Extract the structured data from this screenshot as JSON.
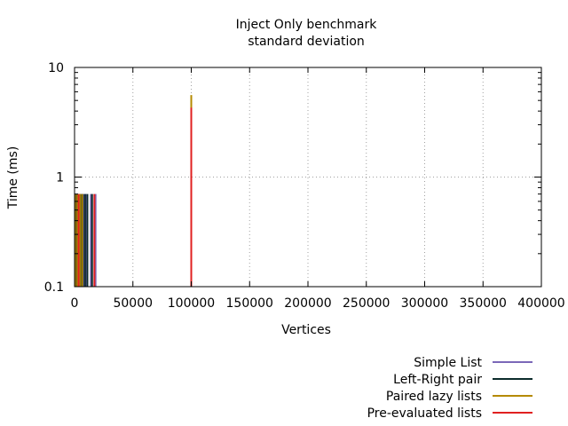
{
  "chart_data": {
    "type": "bar",
    "title": "Inject Only benchmark",
    "subtitle": "standard deviation",
    "xlabel": "Vertices",
    "ylabel": "Time (ms)",
    "x_scale": "linear",
    "y_scale": "log",
    "xlim": [
      0,
      400000
    ],
    "ylim": [
      0.1,
      10
    ],
    "x_ticks": [
      0,
      50000,
      100000,
      150000,
      200000,
      250000,
      300000,
      350000,
      400000
    ],
    "x_tick_labels": [
      "0",
      "50000",
      "100000",
      "150000",
      "200000",
      "250000",
      "300000",
      "350000",
      "400000"
    ],
    "y_ticks": [
      0.1,
      1,
      10
    ],
    "y_tick_labels": [
      "0.1",
      "1",
      "10"
    ],
    "grid": true,
    "legend_position": "bottom-right",
    "series": [
      {
        "name": "Simple List",
        "color": "#7b68b8",
        "x": [
          1000,
          2000,
          4000,
          6000,
          8000,
          10000,
          14000,
          18000
        ],
        "values": [
          0.7,
          0.7,
          0.7,
          0.7,
          0.7,
          0.7,
          0.7,
          0.7
        ]
      },
      {
        "name": "Left-Right pair",
        "color": "#0c2b2b",
        "x": [
          1500,
          3000,
          5000,
          7000,
          9000,
          11000,
          15000,
          100000
        ],
        "values": [
          0.7,
          0.7,
          0.7,
          0.7,
          0.7,
          0.7,
          0.7,
          5.5
        ]
      },
      {
        "name": "Paired lazy lists",
        "color": "#b58a00",
        "x": [
          500,
          2500,
          4500,
          6500,
          100000
        ],
        "values": [
          0.7,
          0.7,
          0.7,
          0.7,
          5.6
        ]
      },
      {
        "name": "Pre-evaluated lists",
        "color": "#e02020",
        "x": [
          3500,
          17000,
          100000
        ],
        "values": [
          0.7,
          0.7,
          4.3
        ]
      }
    ]
  }
}
